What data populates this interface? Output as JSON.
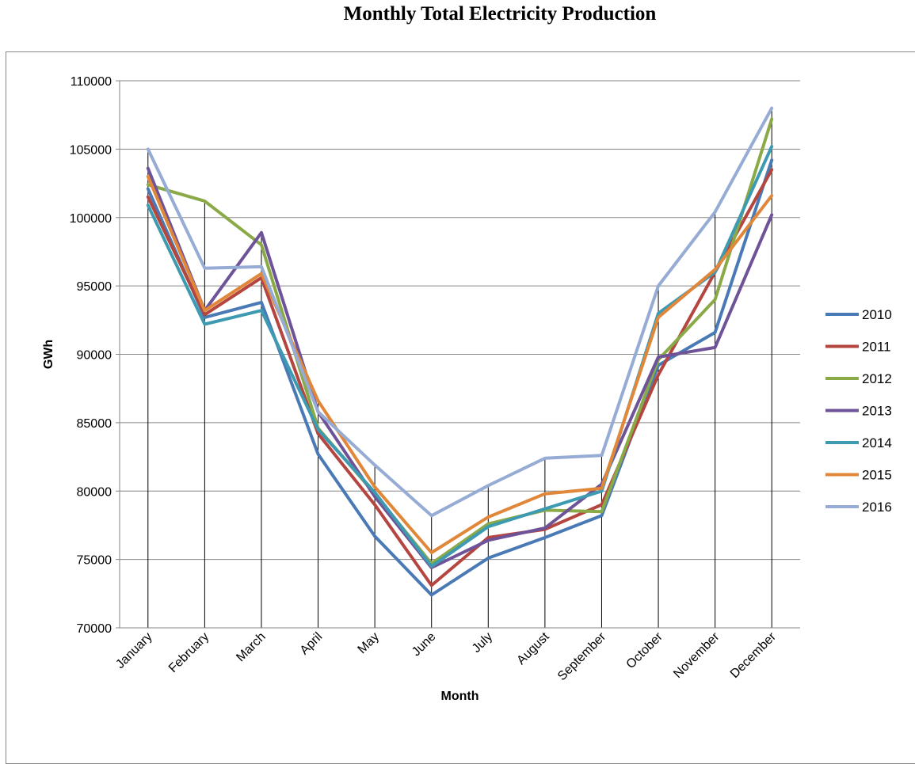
{
  "page": {
    "title": "Monthly Total Electricity Production"
  },
  "chart_data": {
    "type": "line",
    "title": "Monthly Total Electricity Production",
    "xlabel": "Month",
    "ylabel": "GWh",
    "ylim": [
      70000,
      110000
    ],
    "yticks": [
      70000,
      75000,
      80000,
      85000,
      90000,
      95000,
      100000,
      105000,
      110000
    ],
    "grid": "horizontal major gridlines",
    "drop_lines": true,
    "legend_position": "right",
    "categories": [
      "January",
      "February",
      "March",
      "April",
      "May",
      "June",
      "July",
      "August",
      "September",
      "October",
      "November",
      "December"
    ],
    "series": [
      {
        "name": "2010",
        "color": "#4a7ab5",
        "values": [
          102100,
          92700,
          93800,
          82700,
          76700,
          72400,
          75100,
          76600,
          78200,
          89200,
          91600,
          104200
        ]
      },
      {
        "name": "2011",
        "color": "#b5453f",
        "values": [
          101500,
          92900,
          95600,
          84200,
          79000,
          73100,
          76600,
          77200,
          79000,
          88500,
          96000,
          103500
        ]
      },
      {
        "name": "2012",
        "color": "#8aaa48",
        "values": [
          102400,
          101200,
          98000,
          84600,
          79800,
          74700,
          77600,
          78600,
          78500,
          89600,
          94000,
          107200
        ]
      },
      {
        "name": "2013",
        "color": "#6f5399",
        "values": [
          103600,
          93200,
          98900,
          85800,
          79600,
          74400,
          76400,
          77300,
          80500,
          89800,
          90500,
          100200
        ]
      },
      {
        "name": "2014",
        "color": "#3d9ab1",
        "values": [
          100900,
          92200,
          93200,
          84500,
          79900,
          74500,
          77400,
          78700,
          80000,
          93000,
          96000,
          105200
        ]
      },
      {
        "name": "2015",
        "color": "#e0873a",
        "values": [
          103000,
          93200,
          95900,
          86600,
          80300,
          75500,
          78100,
          79800,
          80200,
          92700,
          96200,
          101600
        ]
      },
      {
        "name": "2016",
        "color": "#96acd4",
        "values": [
          105000,
          96300,
          96400,
          85800,
          81900,
          78200,
          80400,
          82400,
          82600,
          95000,
          100400,
          108000
        ]
      }
    ]
  }
}
